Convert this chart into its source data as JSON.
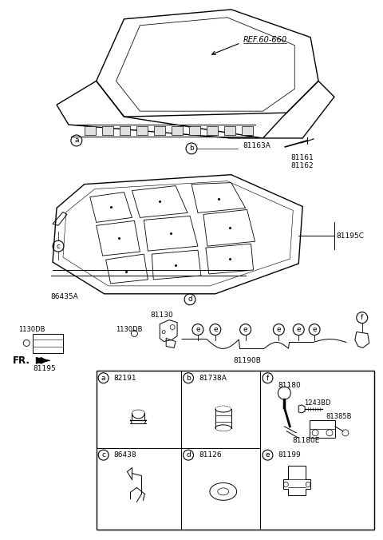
{
  "bg_color": "#ffffff",
  "fig_width": 4.8,
  "fig_height": 6.76,
  "dpi": 100,
  "labels": {
    "ref": "REF.60-660",
    "label_81163A": "81163A",
    "label_81161": "81161",
    "label_81162": "81162",
    "label_81195C": "81195C",
    "label_86435A": "86435A",
    "label_81130": "81130",
    "label_1130DB_1": "1130DB",
    "label_1130DB_2": "1130DB",
    "label_81195": "81195",
    "label_81190B": "81190B",
    "label_FR": "FR.",
    "label_81180": "81180",
    "label_1243BD": "1243BD",
    "label_81385B": "81385B",
    "label_81180E": "81180E",
    "part_a_num": "82191",
    "part_b_num": "81738A",
    "part_c_num": "86438",
    "part_d_num": "81126",
    "part_e_num": "81199"
  }
}
